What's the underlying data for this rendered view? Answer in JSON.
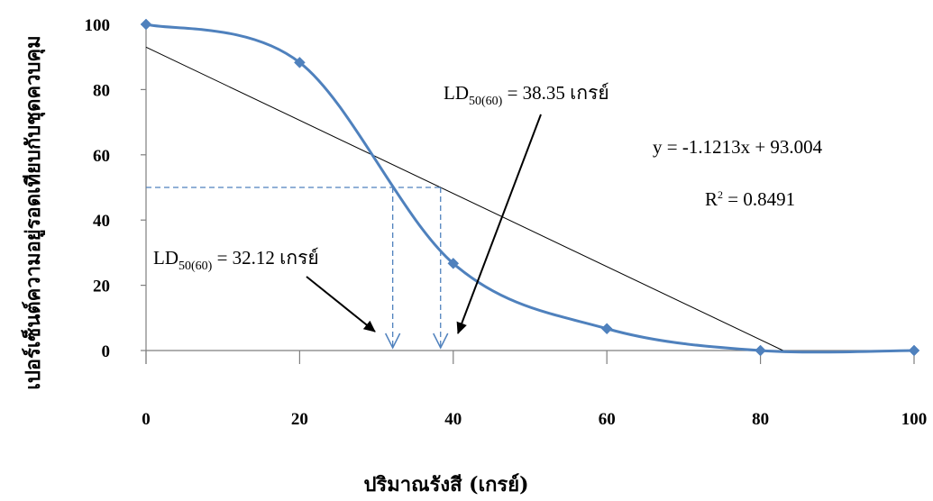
{
  "chart_data": {
    "type": "line",
    "xlabel": "ปริมาณรังสี (เกรย์)",
    "ylabel": "เปอร์เซ็นต์ความอยู่รอดเทียบกับชุดควบคุม",
    "xlim": [
      0,
      100
    ],
    "ylim": [
      0,
      100
    ],
    "x_ticks": [
      "0",
      "20",
      "40",
      "60",
      "80",
      "100"
    ],
    "y_ticks": [
      "0",
      "20",
      "40",
      "60",
      "80",
      "100"
    ],
    "grid": false,
    "legend": "none",
    "series": [
      {
        "color": "#4f81bd",
        "x": [
          0,
          20,
          40,
          60,
          80,
          100
        ],
        "y": [
          100,
          88.3,
          26.7,
          6.7,
          0,
          0
        ]
      }
    ],
    "trendline": {
      "color": "#000000",
      "slope": -1.1213,
      "intercept": 93.004,
      "x_from": 0,
      "x_to": 82.94
    },
    "reference_lines": {
      "color": "#4f81bd",
      "y_level": 50,
      "x_values": [
        32.12,
        38.35
      ]
    },
    "annotations": {
      "ld_trend": {
        "prefix": "LD",
        "sub": "50(60)",
        "suffix": " = 38.35 เกรย์",
        "x_at": 38.35
      },
      "ld_curve": {
        "prefix": "LD",
        "sub": "50(60)",
        "suffix": " = 32.12 เกรย์",
        "x_at": 32.12
      },
      "equation": "y = -1.1213x + 93.004",
      "r2_prefix": "R",
      "r2_sup": "2",
      "r2_suffix": " = 0.8491"
    }
  }
}
